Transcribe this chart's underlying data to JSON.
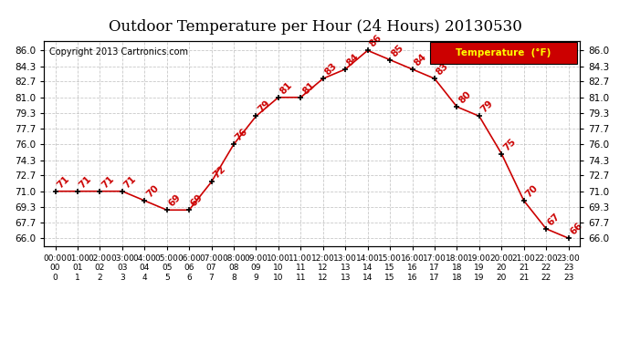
{
  "title": "Outdoor Temperature per Hour (24 Hours) 20130530",
  "copyright": "Copyright 2013 Cartronics.com",
  "legend_label": "Temperature  (°F)",
  "hours": [
    0,
    1,
    2,
    3,
    4,
    5,
    6,
    7,
    8,
    9,
    10,
    11,
    12,
    13,
    14,
    15,
    16,
    17,
    18,
    19,
    20,
    21,
    22,
    23
  ],
  "temperatures": [
    71,
    71,
    71,
    71,
    70,
    69,
    69,
    72,
    76,
    79,
    81,
    81,
    83,
    84,
    86,
    85,
    84,
    83,
    80,
    79,
    75,
    70,
    67,
    66
  ],
  "ylim": [
    65.14,
    87.0
  ],
  "yticks": [
    66.0,
    67.7,
    69.3,
    71.0,
    72.7,
    74.3,
    76.0,
    77.7,
    79.3,
    81.0,
    82.7,
    84.3,
    86.0
  ],
  "line_color": "#cc0000",
  "marker_color": "#000000",
  "label_color": "#cc0000",
  "bg_color": "#ffffff",
  "grid_color": "#bbbbbb",
  "title_fontsize": 12,
  "legend_bg": "#cc0000",
  "legend_text_color": "#ffff00",
  "label_fontsize": 7.5,
  "tick_fontsize": 7.5,
  "copyright_fontsize": 7
}
